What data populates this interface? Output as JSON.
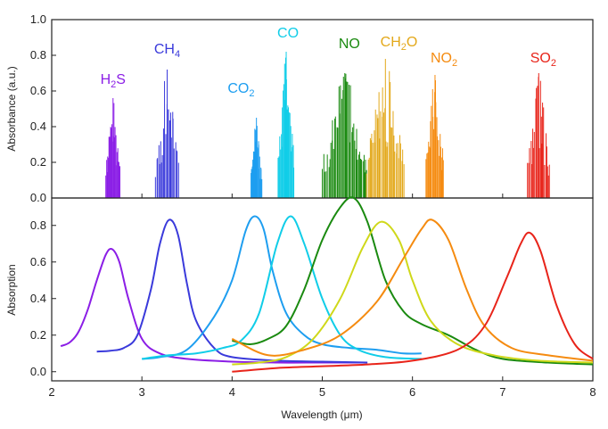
{
  "chart_data": [
    {
      "type": "bar",
      "panel": "top",
      "ylabel": "Absorbance (a.u.)",
      "xlim": [
        2,
        8
      ],
      "ylim": [
        0,
        1.0
      ],
      "yticks": [
        "0.0",
        "0.2",
        "0.4",
        "0.6",
        "0.8",
        "1.0"
      ],
      "grid": false,
      "series": [
        {
          "name": "H2S",
          "label": [
            "H",
            "2",
            "S"
          ],
          "color": "#8b1ee6",
          "center": 2.68,
          "width": 0.16,
          "peak": 0.56
        },
        {
          "name": "CH4",
          "label": [
            "CH",
            "4",
            ""
          ],
          "color": "#3a3adb",
          "center": 3.28,
          "width": 0.26,
          "peak": 0.72
        },
        {
          "name": "CO2",
          "label": [
            "CO",
            "2",
            ""
          ],
          "color": "#1e9ef0",
          "center": 4.27,
          "width": 0.12,
          "peak": 0.45
        },
        {
          "name": "CO",
          "label": [
            "CO",
            "",
            ""
          ],
          "color": "#10cde8",
          "center": 4.6,
          "width": 0.18,
          "peak": 0.82
        },
        {
          "name": "NO",
          "label": [
            "NO",
            "",
            ""
          ],
          "color": "#1a8a10",
          "center": 5.25,
          "width": 0.5,
          "peak": 0.7
        },
        {
          "name": "CH2O",
          "label": [
            "CH",
            "2",
            "O"
          ],
          "color": "#e3a81a",
          "center": 5.7,
          "width": 0.42,
          "peak": 0.78
        },
        {
          "name": "NO2",
          "label": [
            "NO",
            "2",
            ""
          ],
          "color": "#f58b10",
          "center": 6.25,
          "width": 0.2,
          "peak": 0.69
        },
        {
          "name": "SO2",
          "label": [
            "SO",
            "2",
            ""
          ],
          "color": "#e8241a",
          "center": 7.4,
          "width": 0.25,
          "peak": 0.7
        }
      ]
    },
    {
      "type": "line",
      "panel": "bottom",
      "xlabel": "Wavelength (μm)",
      "ylabel": "Absorption",
      "xlim": [
        2,
        8
      ],
      "ylim": [
        -0.05,
        0.95
      ],
      "xticks": [
        "2",
        "3",
        "4",
        "5",
        "6",
        "7",
        "8"
      ],
      "yticks": [
        "0.0",
        "0.2",
        "0.4",
        "0.6",
        "0.8"
      ],
      "grid": false,
      "series": [
        {
          "name": "H2S",
          "color": "#8b1ee6",
          "points": [
            [
              2.1,
              0.14
            ],
            [
              2.2,
              0.16
            ],
            [
              2.3,
              0.22
            ],
            [
              2.4,
              0.34
            ],
            [
              2.5,
              0.5
            ],
            [
              2.6,
              0.64
            ],
            [
              2.67,
              0.67
            ],
            [
              2.75,
              0.6
            ],
            [
              2.85,
              0.4
            ],
            [
              3.0,
              0.18
            ],
            [
              3.2,
              0.1
            ],
            [
              3.5,
              0.07
            ],
            [
              4.0,
              0.055
            ],
            [
              4.5,
              0.05
            ],
            [
              5.0,
              0.05
            ],
            [
              5.5,
              0.05
            ]
          ]
        },
        {
          "name": "CH4",
          "color": "#3a3adb",
          "points": [
            [
              2.5,
              0.11
            ],
            [
              2.65,
              0.115
            ],
            [
              2.8,
              0.13
            ],
            [
              2.95,
              0.2
            ],
            [
              3.1,
              0.45
            ],
            [
              3.2,
              0.7
            ],
            [
              3.3,
              0.83
            ],
            [
              3.4,
              0.75
            ],
            [
              3.5,
              0.48
            ],
            [
              3.6,
              0.28
            ],
            [
              3.8,
              0.13
            ],
            [
              4.0,
              0.08
            ],
            [
              4.5,
              0.06
            ],
            [
              5.0,
              0.055
            ],
            [
              5.5,
              0.05
            ]
          ]
        },
        {
          "name": "CO2",
          "color": "#1e9ef0",
          "points": [
            [
              3.0,
              0.07
            ],
            [
              3.2,
              0.08
            ],
            [
              3.5,
              0.12
            ],
            [
              3.8,
              0.3
            ],
            [
              4.0,
              0.5
            ],
            [
              4.15,
              0.77
            ],
            [
              4.25,
              0.85
            ],
            [
              4.35,
              0.78
            ],
            [
              4.45,
              0.55
            ],
            [
              4.6,
              0.32
            ],
            [
              4.8,
              0.2
            ],
            [
              5.0,
              0.15
            ],
            [
              5.3,
              0.13
            ],
            [
              5.6,
              0.12
            ],
            [
              5.9,
              0.1
            ],
            [
              6.1,
              0.1
            ]
          ]
        },
        {
          "name": "CO",
          "color": "#10cde8",
          "points": [
            [
              3.0,
              0.07
            ],
            [
              3.3,
              0.09
            ],
            [
              3.6,
              0.1
            ],
            [
              3.9,
              0.13
            ],
            [
              4.1,
              0.17
            ],
            [
              4.3,
              0.32
            ],
            [
              4.5,
              0.7
            ],
            [
              4.65,
              0.85
            ],
            [
              4.8,
              0.7
            ],
            [
              5.0,
              0.4
            ],
            [
              5.2,
              0.2
            ],
            [
              5.4,
              0.12
            ],
            [
              5.7,
              0.08
            ],
            [
              6.1,
              0.07
            ]
          ]
        },
        {
          "name": "NO",
          "color": "#1a8a10",
          "points": [
            [
              4.0,
              0.17
            ],
            [
              4.2,
              0.15
            ],
            [
              4.4,
              0.18
            ],
            [
              4.6,
              0.25
            ],
            [
              4.8,
              0.45
            ],
            [
              5.0,
              0.72
            ],
            [
              5.2,
              0.9
            ],
            [
              5.35,
              0.95
            ],
            [
              5.5,
              0.82
            ],
            [
              5.7,
              0.5
            ],
            [
              5.9,
              0.33
            ],
            [
              6.1,
              0.26
            ],
            [
              6.4,
              0.2
            ],
            [
              6.7,
              0.12
            ],
            [
              7.0,
              0.07
            ],
            [
              7.5,
              0.05
            ],
            [
              8.0,
              0.04
            ]
          ]
        },
        {
          "name": "CH2O",
          "color": "#cfd81a",
          "points": [
            [
              4.0,
              0.04
            ],
            [
              4.3,
              0.05
            ],
            [
              4.6,
              0.08
            ],
            [
              4.9,
              0.18
            ],
            [
              5.2,
              0.4
            ],
            [
              5.45,
              0.68
            ],
            [
              5.65,
              0.82
            ],
            [
              5.85,
              0.72
            ],
            [
              6.0,
              0.5
            ],
            [
              6.2,
              0.28
            ],
            [
              6.5,
              0.15
            ],
            [
              6.9,
              0.09
            ],
            [
              7.4,
              0.06
            ],
            [
              8.0,
              0.05
            ]
          ]
        },
        {
          "name": "NO2",
          "color": "#f58b10",
          "points": [
            [
              4.0,
              0.18
            ],
            [
              4.4,
              0.09
            ],
            [
              4.8,
              0.12
            ],
            [
              5.2,
              0.2
            ],
            [
              5.6,
              0.38
            ],
            [
              5.9,
              0.62
            ],
            [
              6.1,
              0.78
            ],
            [
              6.22,
              0.83
            ],
            [
              6.4,
              0.72
            ],
            [
              6.6,
              0.45
            ],
            [
              6.8,
              0.25
            ],
            [
              7.1,
              0.13
            ],
            [
              7.5,
              0.09
            ],
            [
              8.0,
              0.06
            ]
          ]
        },
        {
          "name": "SO2",
          "color": "#e8241a",
          "points": [
            [
              4.0,
              0.0
            ],
            [
              4.5,
              0.02
            ],
            [
              5.0,
              0.03
            ],
            [
              5.5,
              0.04
            ],
            [
              6.0,
              0.06
            ],
            [
              6.5,
              0.12
            ],
            [
              6.8,
              0.25
            ],
            [
              7.05,
              0.52
            ],
            [
              7.2,
              0.7
            ],
            [
              7.3,
              0.76
            ],
            [
              7.42,
              0.66
            ],
            [
              7.6,
              0.36
            ],
            [
              7.8,
              0.15
            ],
            [
              8.0,
              0.07
            ]
          ]
        }
      ]
    }
  ]
}
